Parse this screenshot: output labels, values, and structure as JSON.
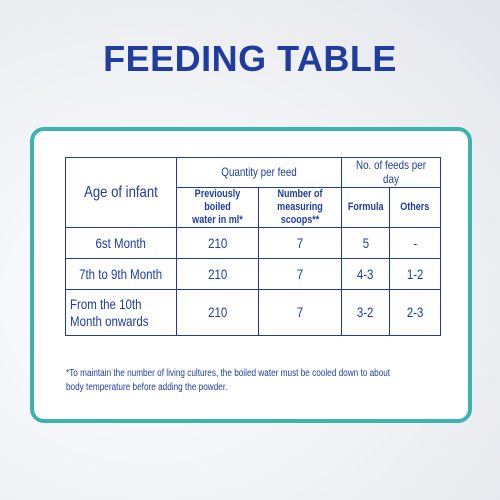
{
  "title": "FEEDING TABLE",
  "table": {
    "header": {
      "age": "Age of infant",
      "quantity": "Quantity per feed",
      "water": "Previously boiled\nwater in ml*",
      "scoops": "Number of\nmeasuring scoops**",
      "feeds": "No. of feeds per day",
      "formula": "Formula",
      "others": "Others"
    },
    "rows": [
      [
        "6st Month",
        "210",
        "7",
        "5",
        "-"
      ],
      [
        "7th to 9th Month",
        "210",
        "7",
        "4-3",
        "1-2"
      ],
      [
        "From the 10th\nMonth onwards",
        "210",
        "7",
        "3-2",
        "2-3"
      ]
    ]
  },
  "footnote": "*To maintain the number of living cultures, the boiled water must be cooled down to about\nbody temperature before adding the powder."
}
